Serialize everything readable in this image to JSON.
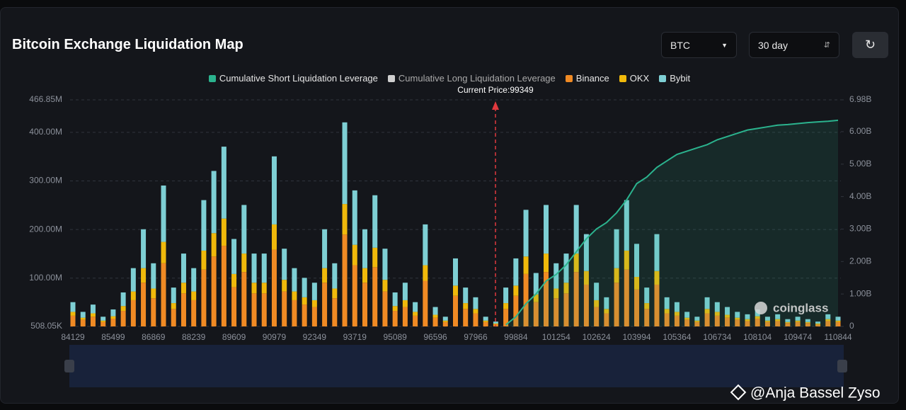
{
  "title": "Bitcoin Exchange Liquidation Map",
  "controls": {
    "symbol": "BTC",
    "period": "30 day"
  },
  "watermark": "coinglass",
  "footer": "@Anja Bassel Zyso",
  "chart_data": {
    "type": "bar",
    "stacked": true,
    "current_price_label": "Current Price:99349",
    "categories": [
      "84129",
      null,
      null,
      null,
      "85499",
      null,
      null,
      null,
      "86869",
      null,
      null,
      null,
      "88239",
      null,
      null,
      null,
      "89609",
      null,
      null,
      null,
      "90979",
      null,
      null,
      null,
      "92349",
      null,
      null,
      null,
      "93719",
      null,
      null,
      null,
      "95089",
      null,
      null,
      null,
      "96596",
      null,
      null,
      null,
      "97966",
      null,
      null,
      null,
      "99884",
      null,
      null,
      null,
      "101254",
      null,
      null,
      null,
      "102624",
      null,
      null,
      null,
      "103994",
      null,
      null,
      null,
      "105364",
      null,
      null,
      null,
      "106734",
      null,
      null,
      null,
      "108104",
      null,
      null,
      null,
      "109474",
      null,
      null,
      null,
      "110844"
    ],
    "ylim": [
      0.50805,
      466.85
    ],
    "yticks": [
      {
        "value": 0.50805,
        "label": "508.05K"
      },
      {
        "value": 100,
        "label": "100.00M"
      },
      {
        "value": 200,
        "label": "200.00M"
      },
      {
        "value": 300,
        "label": "300.00M"
      },
      {
        "value": 400,
        "label": "400.00M"
      },
      {
        "value": 466.85,
        "label": "466.85M"
      }
    ],
    "y2lim": [
      0,
      6.98
    ],
    "y2ticks": [
      0,
      {
        "value": 1,
        "label": "1.00B"
      },
      {
        "value": 2,
        "label": "2.00B"
      },
      {
        "value": 3,
        "label": "3.00B"
      },
      {
        "value": 4,
        "label": "4.00B"
      },
      {
        "value": 5,
        "label": "5.00B"
      },
      {
        "value": 6,
        "label": "6.00B"
      },
      {
        "value": 6.98,
        "label": "6.98B"
      }
    ],
    "grid": true,
    "series": [
      {
        "name": "Cumulative Short Liquidation Leverage",
        "type": "line",
        "axis": "y2",
        "color": "#2bb38e",
        "values": [
          null,
          null,
          null,
          null,
          null,
          null,
          null,
          null,
          null,
          null,
          null,
          null,
          null,
          null,
          null,
          null,
          null,
          null,
          null,
          null,
          null,
          null,
          null,
          null,
          null,
          null,
          null,
          null,
          null,
          null,
          null,
          null,
          null,
          null,
          null,
          null,
          null,
          null,
          null,
          null,
          null,
          null,
          null,
          0.05,
          0.3,
          0.7,
          1.0,
          1.4,
          1.6,
          1.9,
          2.3,
          2.7,
          3.0,
          3.2,
          3.5,
          3.9,
          4.4,
          4.6,
          4.9,
          5.1,
          5.3,
          5.4,
          5.5,
          5.6,
          5.75,
          5.85,
          5.95,
          6.05,
          6.1,
          6.15,
          6.2,
          6.22,
          6.25,
          6.28,
          6.3,
          6.32,
          6.35
        ]
      },
      {
        "name": "Cumulative Long Liquidation Leverage",
        "type": "line",
        "axis": "y2",
        "color": "#cfcfcf",
        "visible": false
      },
      {
        "name": "Binance",
        "type": "bar",
        "color": "#f08a24",
        "values": [
          22,
          14,
          20,
          9,
          16,
          32,
          54,
          90,
          58,
          130,
          36,
          68,
          54,
          117,
          144,
          166,
          81,
          112,
          68,
          68,
          158,
          72,
          54,
          45,
          40,
          90,
          58,
          189,
          126,
          90,
          122,
          72,
          32,
          40,
          22,
          94,
          18,
          9,
          63,
          36,
          27,
          9,
          4,
          36,
          63,
          108,
          50,
          112,
          58,
          68,
          112,
          86,
          40,
          27,
          90,
          117,
          76,
          36,
          86,
          27,
          22,
          14,
          9,
          27,
          22,
          18,
          14,
          11,
          16,
          9,
          11,
          7,
          9,
          7,
          4,
          11,
          9
        ]
      },
      {
        "name": "OKX",
        "type": "bar",
        "color": "#f0b90b",
        "values": [
          8,
          4,
          7,
          3,
          5,
          10,
          18,
          30,
          20,
          44,
          12,
          22,
          18,
          39,
          48,
          56,
          27,
          38,
          22,
          22,
          52,
          24,
          18,
          15,
          14,
          30,
          20,
          63,
          42,
          30,
          40,
          24,
          10,
          14,
          8,
          32,
          6,
          3,
          21,
          12,
          9,
          3,
          2,
          12,
          21,
          36,
          16,
          38,
          20,
          22,
          38,
          28,
          14,
          9,
          30,
          39,
          26,
          12,
          28,
          9,
          8,
          4,
          3,
          9,
          8,
          6,
          4,
          4,
          5,
          3,
          4,
          2,
          3,
          2,
          2,
          4,
          3
        ]
      },
      {
        "name": "Bybit",
        "type": "bar",
        "color": "#7ecfd4",
        "values": [
          20,
          12,
          18,
          8,
          14,
          28,
          48,
          80,
          52,
          116,
          32,
          60,
          48,
          104,
          128,
          148,
          72,
          100,
          60,
          60,
          140,
          64,
          48,
          40,
          36,
          80,
          52,
          168,
          112,
          80,
          108,
          64,
          28,
          36,
          20,
          84,
          16,
          8,
          56,
          32,
          24,
          8,
          4,
          32,
          56,
          96,
          44,
          100,
          52,
          60,
          100,
          76,
          36,
          24,
          80,
          104,
          68,
          32,
          76,
          24,
          20,
          12,
          8,
          24,
          20,
          16,
          12,
          10,
          14,
          8,
          10,
          6,
          8,
          6,
          4,
          10,
          8
        ]
      }
    ]
  }
}
